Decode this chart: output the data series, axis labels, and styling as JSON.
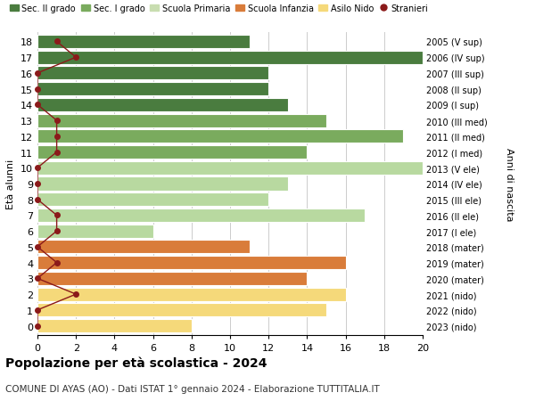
{
  "ages": [
    18,
    17,
    16,
    15,
    14,
    13,
    12,
    11,
    10,
    9,
    8,
    7,
    6,
    5,
    4,
    3,
    2,
    1,
    0
  ],
  "labels_right": [
    "2005 (V sup)",
    "2006 (IV sup)",
    "2007 (III sup)",
    "2008 (II sup)",
    "2009 (I sup)",
    "2010 (III med)",
    "2011 (II med)",
    "2012 (I med)",
    "2013 (V ele)",
    "2014 (IV ele)",
    "2015 (III ele)",
    "2016 (II ele)",
    "2017 (I ele)",
    "2018 (mater)",
    "2019 (mater)",
    "2020 (mater)",
    "2021 (nido)",
    "2022 (nido)",
    "2023 (nido)"
  ],
  "bar_values": [
    11,
    20,
    12,
    12,
    13,
    15,
    19,
    14,
    20,
    13,
    12,
    17,
    6,
    11,
    16,
    14,
    16,
    15,
    8
  ],
  "bar_colors": [
    "#4a7c3f",
    "#4a7c3f",
    "#4a7c3f",
    "#4a7c3f",
    "#4a7c3f",
    "#7aab5e",
    "#7aab5e",
    "#7aab5e",
    "#b8d9a0",
    "#b8d9a0",
    "#b8d9a0",
    "#b8d9a0",
    "#b8d9a0",
    "#d97c3a",
    "#d97c3a",
    "#d97c3a",
    "#f5d97a",
    "#f5d97a",
    "#f5d97a"
  ],
  "stranieri_x": [
    1,
    2,
    0,
    0,
    0,
    1,
    1,
    1,
    0,
    0,
    0,
    1,
    1,
    0,
    1,
    0,
    2,
    0,
    0
  ],
  "legend_labels": [
    "Sec. II grado",
    "Sec. I grado",
    "Scuola Primaria",
    "Scuola Infanzia",
    "Asilo Nido",
    "Stranieri"
  ],
  "legend_colors": [
    "#4a7c3f",
    "#7aab5e",
    "#c8ddb0",
    "#d97c3a",
    "#f5d97a",
    "#8b1a1a"
  ],
  "ylabel_left": "Età alunni",
  "ylabel_right": "Anni di nascita",
  "title": "Popolazione per età scolastica - 2024",
  "subtitle": "COMUNE DI AYAS (AO) - Dati ISTAT 1° gennaio 2024 - Elaborazione TUTTITALIA.IT",
  "xlim": [
    0,
    20
  ],
  "xticks": [
    0,
    2,
    4,
    6,
    8,
    10,
    12,
    14,
    16,
    18,
    20
  ],
  "bg_color": "#ffffff",
  "grid_color": "#cccccc",
  "bar_edge_color": "#ffffff",
  "stranieri_line_color": "#8b1a1a",
  "stranieri_dot_color": "#8b1a1a"
}
